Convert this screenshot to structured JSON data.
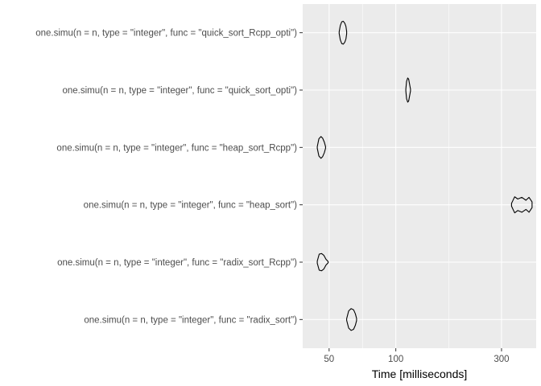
{
  "chart_data": {
    "type": "violin",
    "orientation": "horizontal",
    "xlabel": "Time [milliseconds]",
    "ylabel": "",
    "x_scale": "log10",
    "xlim": [
      38,
      430
    ],
    "x_ticks": [
      {
        "value": 50,
        "label": "50"
      },
      {
        "value": 100,
        "label": "100"
      },
      {
        "value": 300,
        "label": "300"
      }
    ],
    "x_minor_ticks": [
      70.7,
      173.2
    ],
    "grid": true,
    "panel_background": "#ebebeb",
    "grid_color": "#ffffff",
    "outline_color": "#000000",
    "categories": [
      "one.simu(n = n, type = \"integer\", func = \"quick_sort_Rcpp_opti\")",
      "one.simu(n = n, type = \"integer\", func = \"quick_sort_opti\")",
      "one.simu(n = n, type = \"integer\", func = \"heap_sort_Rcpp\")",
      "one.simu(n = n, type = \"integer\", func = \"heap_sort\")",
      "one.simu(n = n, type = \"integer\", func = \"radix_sort_Rcpp\")",
      "one.simu(n = n, type = \"integer\", func = \"radix_sort\")"
    ],
    "series": [
      {
        "category_index": 0,
        "min": 55.5,
        "median": 58.0,
        "max": 60.0,
        "profile": [
          [
            0,
            0.03
          ],
          [
            0.15,
            0.25
          ],
          [
            0.35,
            0.38
          ],
          [
            0.55,
            0.4
          ],
          [
            0.75,
            0.33
          ],
          [
            0.9,
            0.22
          ],
          [
            1,
            0.04
          ]
        ]
      },
      {
        "category_index": 1,
        "min": 111.0,
        "median": 113.0,
        "max": 116.5,
        "profile": [
          [
            0,
            0.03
          ],
          [
            0.15,
            0.3
          ],
          [
            0.4,
            0.42
          ],
          [
            0.6,
            0.38
          ],
          [
            0.8,
            0.2
          ],
          [
            1,
            0.03
          ]
        ]
      },
      {
        "category_index": 2,
        "min": 44.2,
        "median": 46.0,
        "max": 48.2,
        "profile": [
          [
            0,
            0.03
          ],
          [
            0.2,
            0.3
          ],
          [
            0.45,
            0.38
          ],
          [
            0.65,
            0.32
          ],
          [
            0.85,
            0.18
          ],
          [
            1,
            0.03
          ]
        ]
      },
      {
        "category_index": 3,
        "min": 333,
        "median": 360,
        "max": 412,
        "profile": [
          [
            0,
            0.05
          ],
          [
            0.15,
            0.28
          ],
          [
            0.3,
            0.2
          ],
          [
            0.5,
            0.26
          ],
          [
            0.7,
            0.16
          ],
          [
            0.85,
            0.26
          ],
          [
            1,
            0.1
          ]
        ]
      },
      {
        "category_index": 4,
        "min": 44.2,
        "median": 46.0,
        "max": 49.5,
        "profile": [
          [
            0,
            0.04
          ],
          [
            0.18,
            0.28
          ],
          [
            0.4,
            0.3
          ],
          [
            0.6,
            0.24
          ],
          [
            0.8,
            0.1
          ],
          [
            1,
            0.02
          ]
        ]
      },
      {
        "category_index": 5,
        "min": 60.0,
        "median": 63.0,
        "max": 66.5,
        "profile": [
          [
            0,
            0.03
          ],
          [
            0.2,
            0.3
          ],
          [
            0.45,
            0.38
          ],
          [
            0.7,
            0.34
          ],
          [
            0.88,
            0.2
          ],
          [
            1,
            0.04
          ]
        ]
      }
    ]
  }
}
